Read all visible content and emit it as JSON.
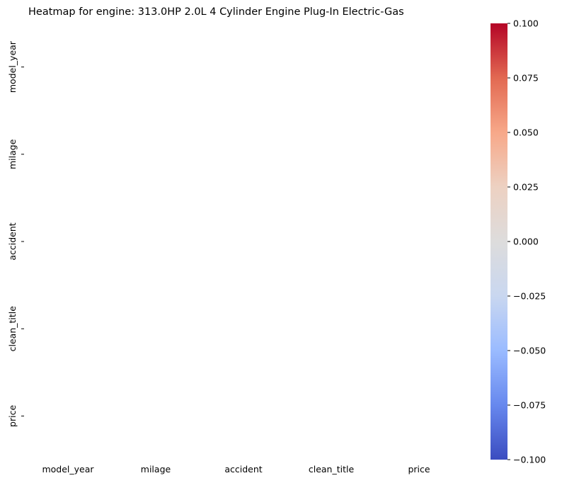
{
  "chart_data": {
    "type": "heatmap",
    "title": "Heatmap for engine: 313.0HP 2.0L 4 Cylinder Engine Plug-In Electric-Gas",
    "x_categories": [
      "model_year",
      "milage",
      "accident",
      "clean_title",
      "price"
    ],
    "y_categories": [
      "model_year",
      "milage",
      "accident",
      "clean_title",
      "price"
    ],
    "values": [
      [
        null,
        null,
        null,
        null,
        null
      ],
      [
        null,
        null,
        null,
        null,
        null
      ],
      [
        null,
        null,
        null,
        null,
        null
      ],
      [
        null,
        null,
        null,
        null,
        null
      ],
      [
        null,
        null,
        null,
        null,
        null
      ]
    ],
    "colormap": "coolwarm",
    "colorbar": {
      "range": [
        -0.1,
        0.1
      ],
      "ticks": [
        0.1,
        0.075,
        0.05,
        0.025,
        0.0,
        -0.025,
        -0.05,
        -0.075,
        -0.1
      ],
      "tick_labels": [
        "0.100",
        "0.075",
        "0.050",
        "0.025",
        "0.000",
        "−0.025",
        "−0.050",
        "−0.075",
        "−0.100"
      ],
      "colors": [
        "#3b4cc0",
        "#6788ee",
        "#9abbff",
        "#c9d7f0",
        "#dddcdc",
        "#edd1c2",
        "#f7a889",
        "#e26952",
        "#b40426"
      ]
    },
    "grid": false,
    "legend": "colorbar-right"
  }
}
